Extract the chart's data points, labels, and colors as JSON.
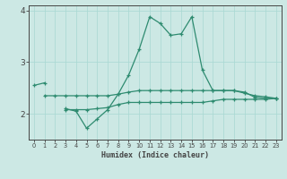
{
  "xlabel": "Humidex (Indice chaleur)",
  "x_values": [
    0,
    1,
    2,
    3,
    4,
    5,
    6,
    7,
    8,
    9,
    10,
    11,
    12,
    13,
    14,
    15,
    16,
    17,
    18,
    19,
    20,
    21,
    22,
    23
  ],
  "line_main": [
    2.55,
    2.6,
    null,
    2.1,
    2.05,
    1.72,
    1.9,
    2.08,
    2.38,
    2.75,
    3.25,
    3.88,
    3.75,
    3.52,
    3.55,
    3.88,
    2.85,
    2.45,
    2.45,
    2.45,
    2.42,
    2.32,
    2.3,
    2.3
  ],
  "line_mid": [
    null,
    2.35,
    2.35,
    2.35,
    2.35,
    2.35,
    2.35,
    2.35,
    2.38,
    2.42,
    2.45,
    2.45,
    2.45,
    2.45,
    2.45,
    2.45,
    2.45,
    2.45,
    2.45,
    2.45,
    2.4,
    2.35,
    2.33,
    2.3
  ],
  "line_low": [
    null,
    null,
    null,
    2.08,
    2.08,
    2.08,
    2.1,
    2.12,
    2.18,
    2.22,
    2.22,
    2.22,
    2.22,
    2.22,
    2.22,
    2.22,
    2.22,
    2.25,
    2.28,
    2.28,
    2.28,
    2.28,
    2.28,
    2.3
  ],
  "ylim": [
    1.5,
    4.1
  ],
  "xlim": [
    -0.5,
    23.5
  ],
  "yticks": [
    2,
    3,
    4
  ],
  "xticks": [
    0,
    1,
    2,
    3,
    4,
    5,
    6,
    7,
    8,
    9,
    10,
    11,
    12,
    13,
    14,
    15,
    16,
    17,
    18,
    19,
    20,
    21,
    22,
    23
  ],
  "line_color": "#2e8b70",
  "bg_color": "#cce8e4",
  "grid_color": "#a8d8d2",
  "axis_color": "#444444"
}
